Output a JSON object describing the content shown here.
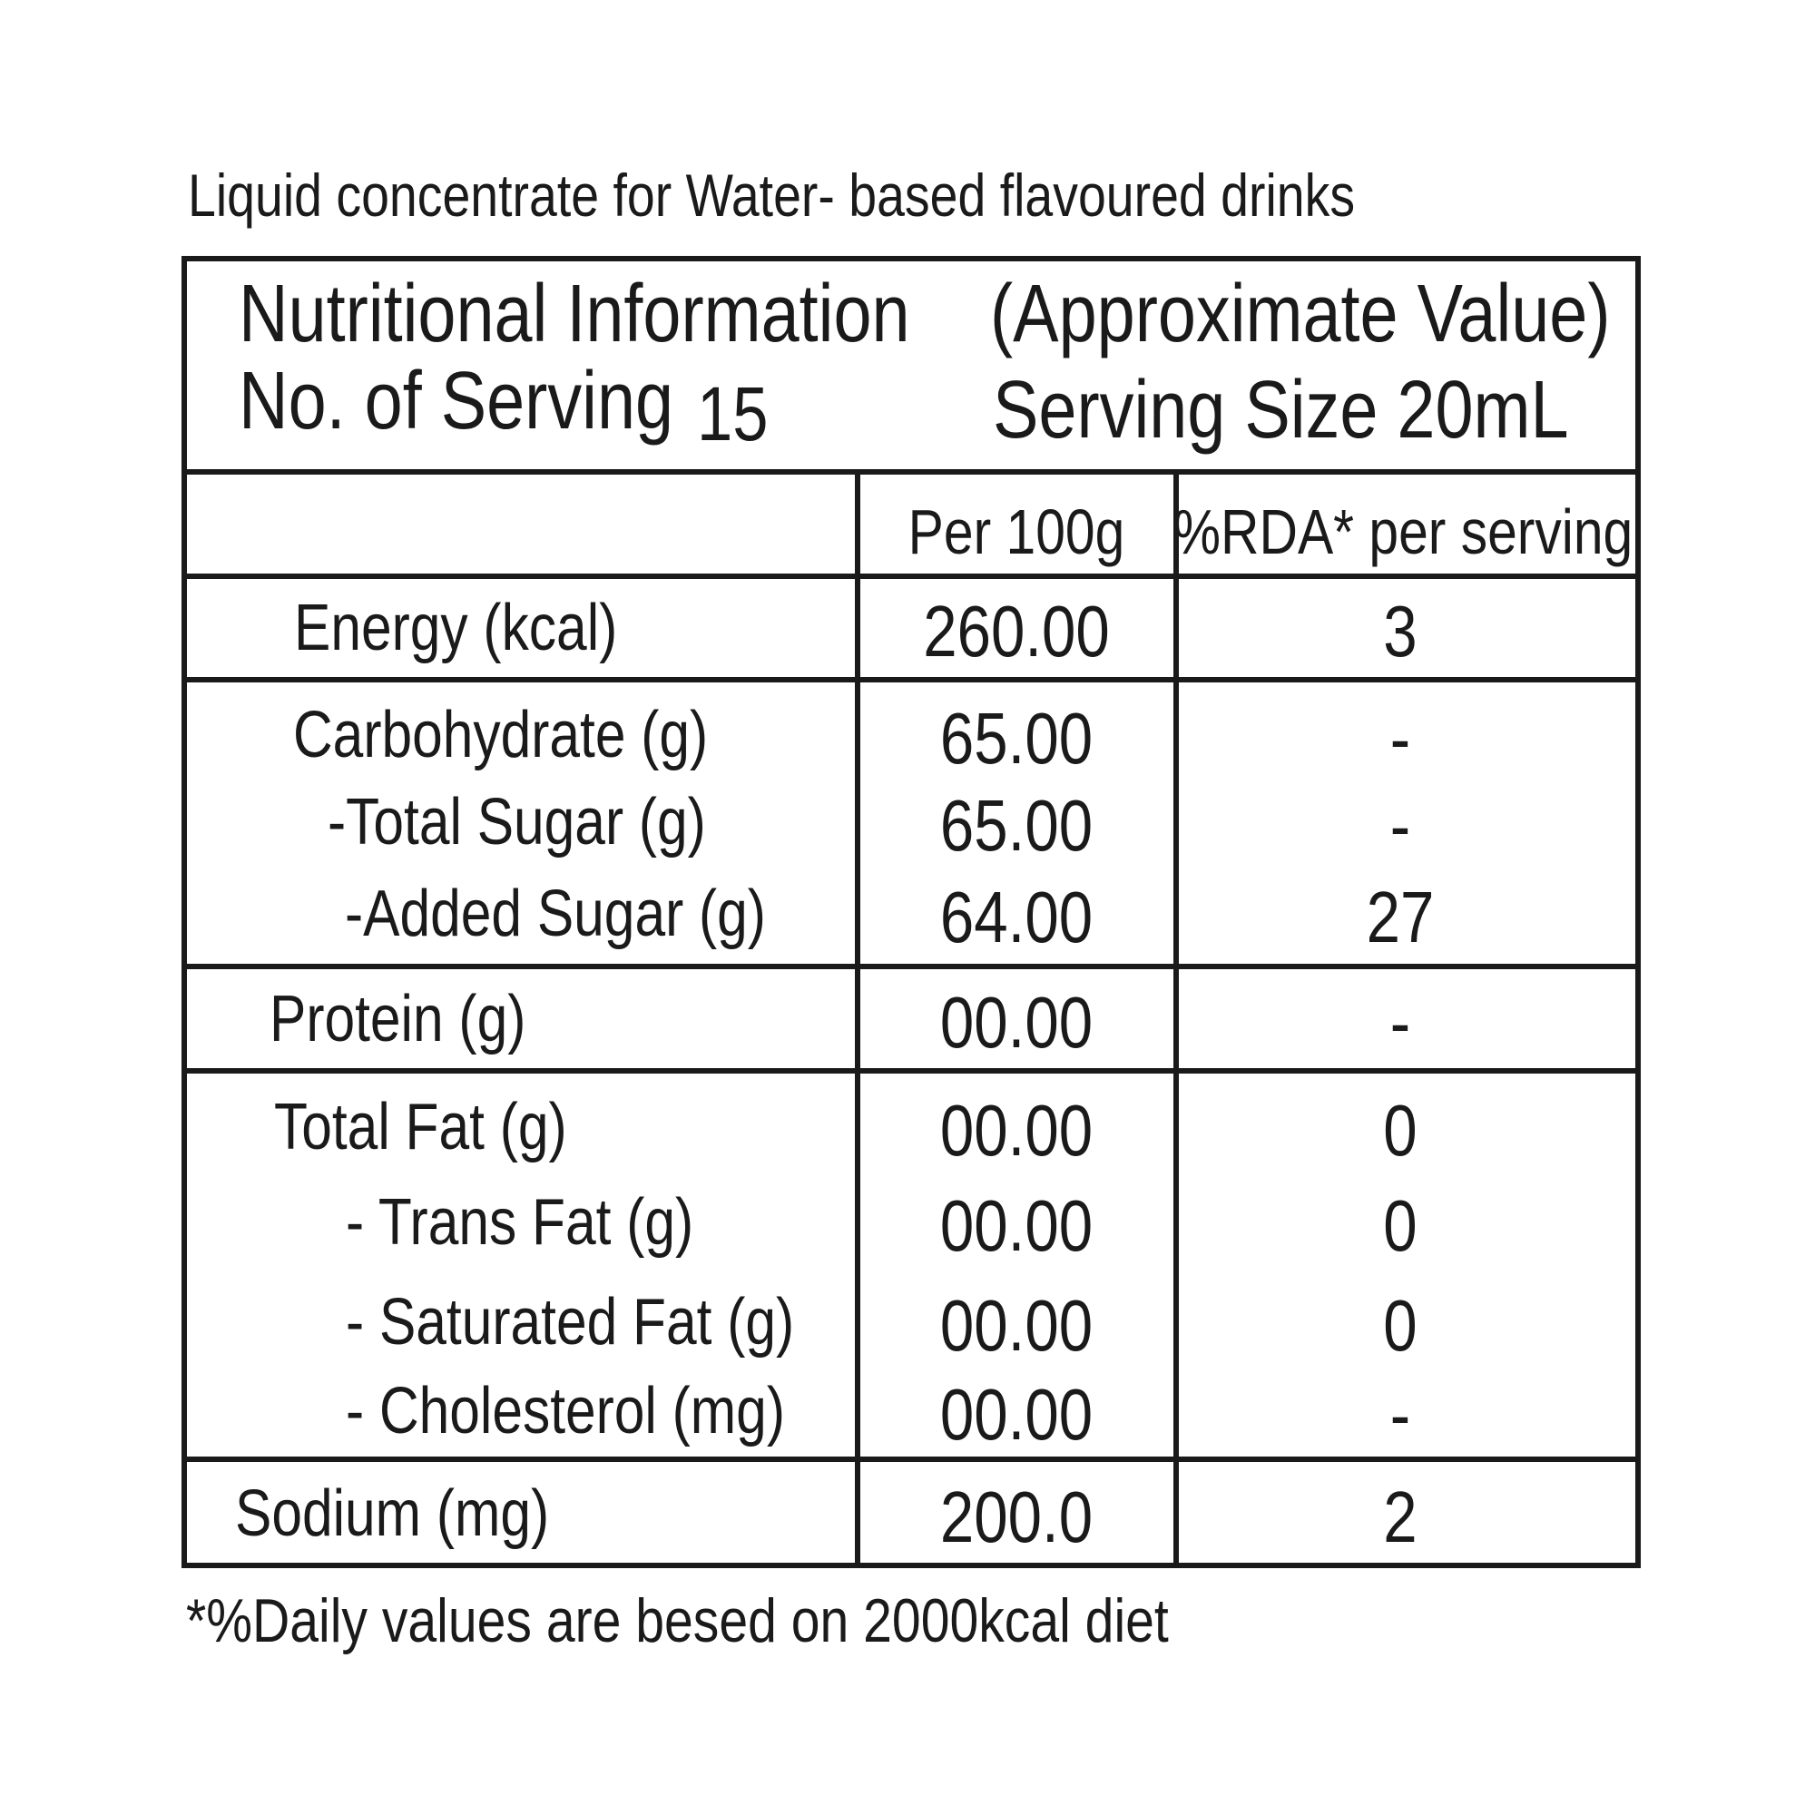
{
  "subtitle": "Liquid concentrate for Water- based flavoured drinks",
  "header": {
    "title": "Nutritional Information",
    "note": "(Approximate Value)",
    "servings_label": "No. of Serving",
    "servings": "15",
    "serving_size": "Serving Size 20mL"
  },
  "table": {
    "columns": [
      "Per 100g",
      "%RDA* per serving"
    ],
    "groups": [
      [
        {
          "label": "Energy (kcal)",
          "per_100g": "260.00",
          "rda": "3"
        }
      ],
      [
        {
          "label": "Carbohydrate (g)",
          "per_100g": "65.00",
          "rda": "-"
        },
        {
          "label": "-Total Sugar (g)",
          "per_100g": "65.00",
          "rda": "-"
        },
        {
          "label": "-Added Sugar (g)",
          "per_100g": "64.00",
          "rda": "27"
        }
      ],
      [
        {
          "label": "Protein (g)",
          "per_100g": "00.00",
          "rda": "-"
        }
      ],
      [
        {
          "label": "Total Fat (g)",
          "per_100g": "00.00",
          "rda": "0"
        },
        {
          "label": "-  Trans Fat (g)",
          "per_100g": "00.00",
          "rda": "0"
        },
        {
          "label": "-  Saturated Fat (g)",
          "per_100g": "00.00",
          "rda": "0"
        },
        {
          "label": "-  Cholesterol (mg)",
          "per_100g": "00.00",
          "rda": "-"
        }
      ],
      [
        {
          "label": "Sodium (mg)",
          "per_100g": "200.0",
          "rda": "2"
        }
      ]
    ]
  },
  "footnote": "*%Daily values are besed on 2000kcal diet"
}
